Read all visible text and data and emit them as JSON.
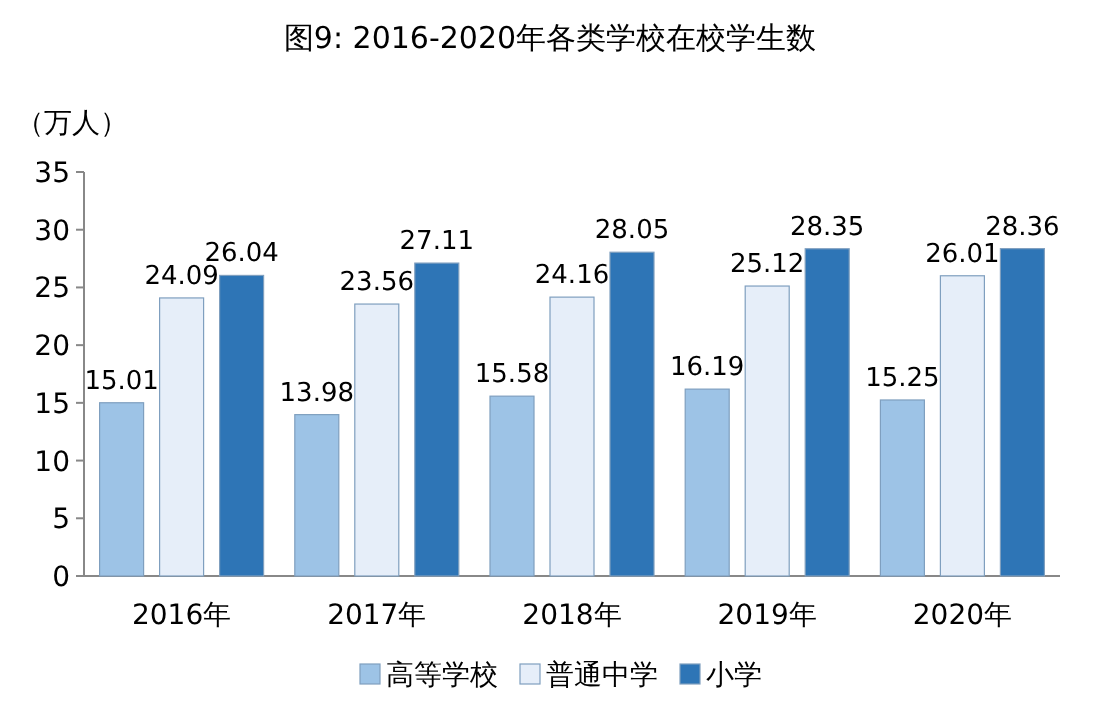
{
  "chart_data": {
    "type": "bar",
    "title": "图9:  2016-2020年各类学校在校学生数",
    "ylabel": "（万人）",
    "categories": [
      "2016年",
      "2017年",
      "2018年",
      "2019年",
      "2020年"
    ],
    "series": [
      {
        "name": "高等学校",
        "color": "#9dc3e6",
        "values": [
          15.01,
          13.98,
          15.58,
          16.19,
          15.25
        ]
      },
      {
        "name": "普通中学",
        "color": "#e6eef9",
        "values": [
          24.09,
          23.56,
          24.16,
          25.12,
          26.01
        ]
      },
      {
        "name": "小学",
        "color": "#2e75b6",
        "values": [
          26.04,
          27.11,
          28.05,
          28.35,
          28.36
        ]
      }
    ],
    "ylim": [
      0,
      35
    ],
    "yticks": [
      0,
      5,
      10,
      15,
      20,
      25,
      30,
      35
    ],
    "data_labels": true,
    "legend": "bottom",
    "grid": false
  }
}
